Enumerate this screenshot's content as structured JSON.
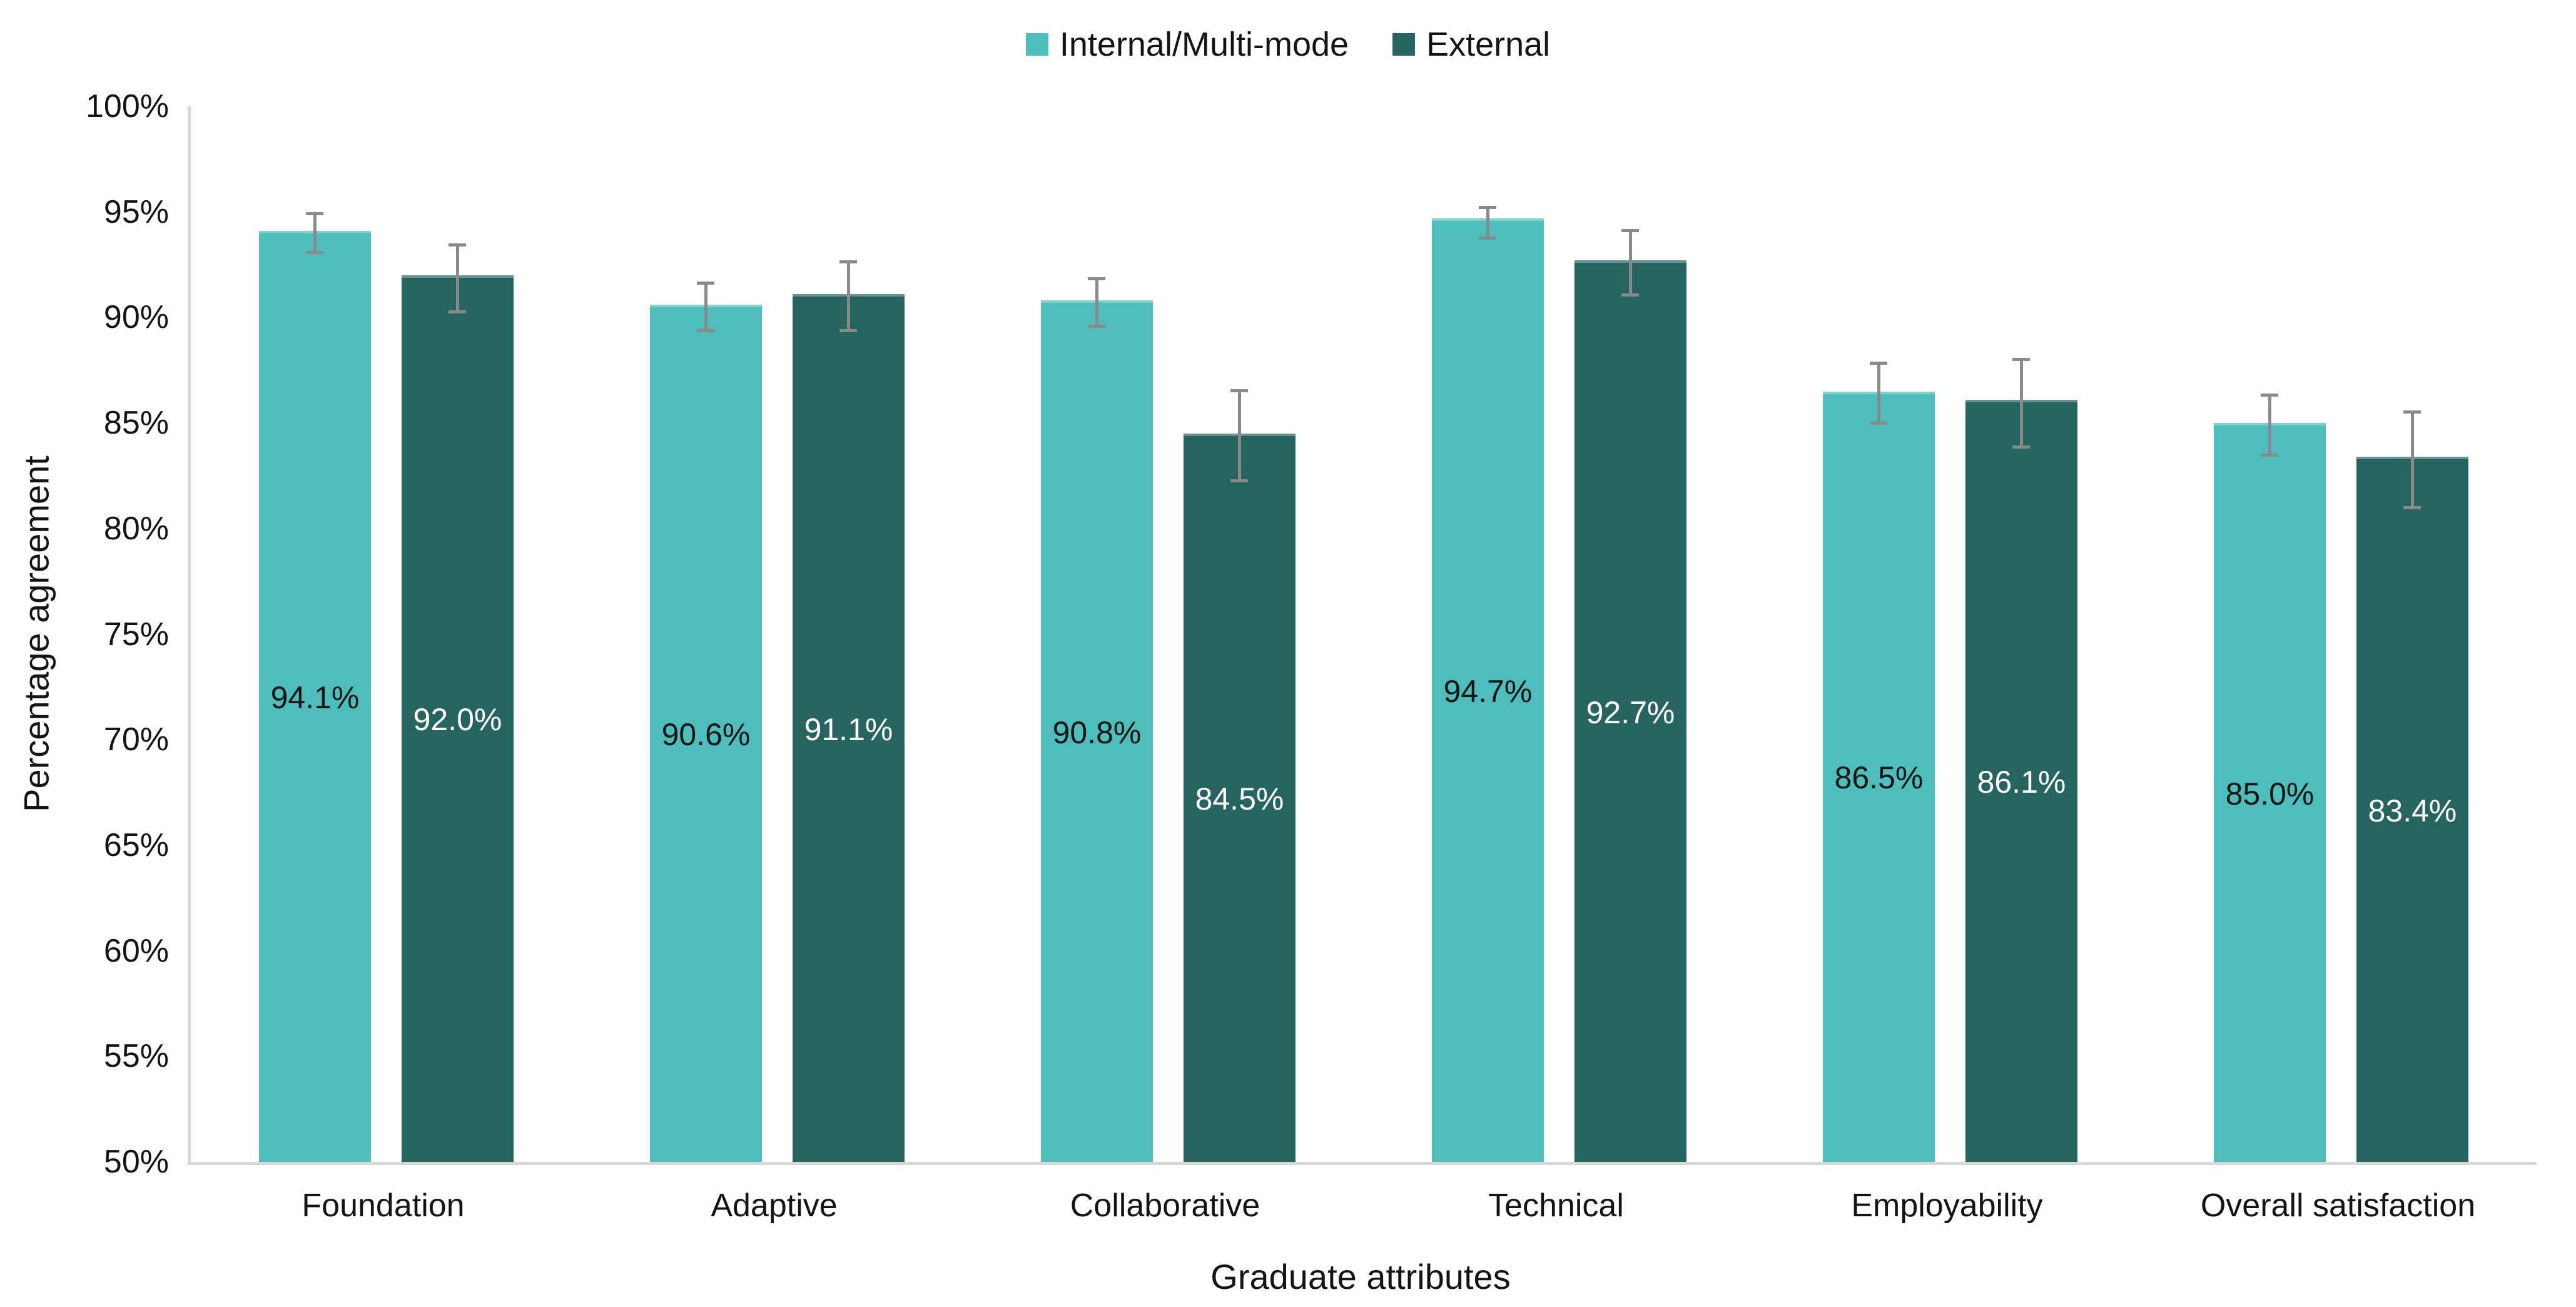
{
  "legend": {
    "items": [
      {
        "label": "Internal/Multi-mode",
        "color": "#4DBEBB"
      },
      {
        "label": "External",
        "color": "#26645F"
      }
    ]
  },
  "chart_data": {
    "type": "bar",
    "title": "",
    "xlabel": "Graduate attributes",
    "ylabel": "Percentage agreement",
    "ylim": [
      50,
      100
    ],
    "grid": false,
    "legend_position": "top-center",
    "ytick_values": [
      100,
      95,
      90,
      85,
      80,
      75,
      70,
      65,
      60,
      55,
      50
    ],
    "ytick_labels": [
      "100%",
      "95%",
      "90%",
      "85%",
      "80%",
      "75%",
      "70%",
      "65%",
      "60%",
      "55%",
      "50%"
    ],
    "categories": [
      "Foundation",
      "Adaptive",
      "Collaborative",
      "Technical",
      "Employability",
      "Overall satisfaction"
    ],
    "series": [
      {
        "name": "Internal/Multi-mode",
        "color": "#4DBEBB",
        "label_color": "#141414",
        "values": [
          94.1,
          90.6,
          90.8,
          94.7,
          86.5,
          85.0
        ],
        "value_labels": [
          "94.1%",
          "90.6%",
          "90.8%",
          "94.7%",
          "86.5%",
          "85.0%"
        ],
        "error_low": [
          93.0,
          89.3,
          89.5,
          93.7,
          84.9,
          83.4
        ],
        "error_high": [
          95.0,
          91.7,
          91.9,
          95.3,
          87.9,
          86.4
        ]
      },
      {
        "name": "External",
        "color": "#26645F",
        "label_color": "#ffffff",
        "values": [
          92.0,
          91.1,
          84.5,
          92.7,
          86.1,
          83.4
        ],
        "value_labels": [
          "92.0%",
          "91.1%",
          "84.5%",
          "92.7%",
          "86.1%",
          "83.4%"
        ],
        "error_low": [
          90.2,
          89.3,
          82.2,
          91.0,
          83.8,
          80.9
        ],
        "error_high": [
          93.5,
          92.7,
          86.6,
          94.2,
          88.1,
          85.6
        ]
      }
    ],
    "error_bar_color": "#8A8A8A",
    "axis_line_color": "#D8D8D8"
  }
}
